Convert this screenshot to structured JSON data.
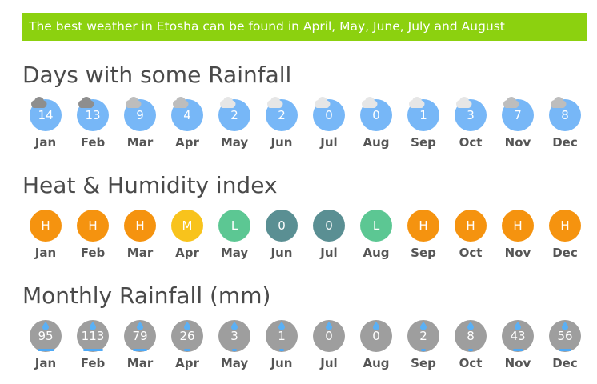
{
  "banner": {
    "text": "The best weather in Etosha can be found in April, May, June, July and August"
  },
  "colors": {
    "banner": "#8cd10f",
    "rain_days_circle": "#77b7f7",
    "cloud_dark": "#8e8e8e",
    "cloud_light": "#e6e6e6",
    "heat_H": "#f5930f",
    "heat_M": "#f8c31c",
    "heat_L": "#5cc793",
    "heat_0": "#5a8f93",
    "rainfall_circle": "#9e9e9e",
    "drop": "#5ab0f5"
  },
  "rain_days": {
    "title": "Days with some Rainfall",
    "months": [
      {
        "month": "Jan",
        "value": "14",
        "cloud": "dark"
      },
      {
        "month": "Feb",
        "value": "13",
        "cloud": "dark"
      },
      {
        "month": "Mar",
        "value": "9",
        "cloud": "mid"
      },
      {
        "month": "Apr",
        "value": "4",
        "cloud": "mid"
      },
      {
        "month": "May",
        "value": "2",
        "cloud": "light"
      },
      {
        "month": "Jun",
        "value": "2",
        "cloud": "light"
      },
      {
        "month": "Jul",
        "value": "0",
        "cloud": "light"
      },
      {
        "month": "Aug",
        "value": "0",
        "cloud": "light"
      },
      {
        "month": "Sep",
        "value": "1",
        "cloud": "light"
      },
      {
        "month": "Oct",
        "value": "3",
        "cloud": "light"
      },
      {
        "month": "Nov",
        "value": "7",
        "cloud": "mid"
      },
      {
        "month": "Dec",
        "value": "8",
        "cloud": "mid"
      }
    ]
  },
  "heat_index": {
    "title": "Heat & Humidity index",
    "months": [
      {
        "month": "Jan",
        "value": "H"
      },
      {
        "month": "Feb",
        "value": "H"
      },
      {
        "month": "Mar",
        "value": "H"
      },
      {
        "month": "Apr",
        "value": "M"
      },
      {
        "month": "May",
        "value": "L"
      },
      {
        "month": "Jun",
        "value": "0"
      },
      {
        "month": "Jul",
        "value": "0"
      },
      {
        "month": "Aug",
        "value": "L"
      },
      {
        "month": "Sep",
        "value": "H"
      },
      {
        "month": "Oct",
        "value": "H"
      },
      {
        "month": "Nov",
        "value": "H"
      },
      {
        "month": "Dec",
        "value": "H"
      }
    ]
  },
  "monthly_rainfall": {
    "title": "Monthly Rainfall (mm)",
    "months": [
      {
        "month": "Jan",
        "value": "95",
        "level": 0.75
      },
      {
        "month": "Feb",
        "value": "113",
        "level": 0.9
      },
      {
        "month": "Mar",
        "value": "79",
        "level": 0.65
      },
      {
        "month": "Apr",
        "value": "26",
        "level": 0.3
      },
      {
        "month": "May",
        "value": "3",
        "level": 0.05
      },
      {
        "month": "Jun",
        "value": "1",
        "level": 0.02
      },
      {
        "month": "Jul",
        "value": "0",
        "level": 0
      },
      {
        "month": "Aug",
        "value": "0",
        "level": 0
      },
      {
        "month": "Sep",
        "value": "2",
        "level": 0.03
      },
      {
        "month": "Oct",
        "value": "8",
        "level": 0.1
      },
      {
        "month": "Nov",
        "value": "43",
        "level": 0.45
      },
      {
        "month": "Dec",
        "value": "56",
        "level": 0.55
      }
    ]
  }
}
